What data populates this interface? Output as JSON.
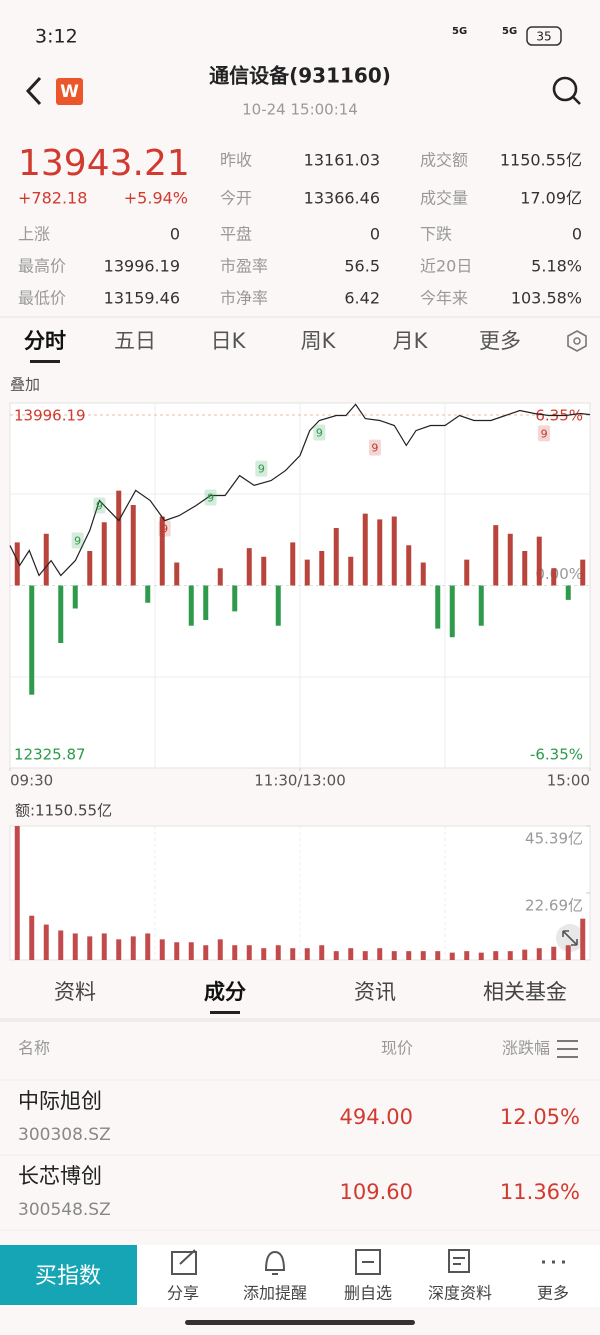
{
  "status_bar": {
    "time": "3:12",
    "signal": [
      "5G",
      "5G"
    ],
    "battery": "35"
  },
  "header": {
    "logo": "W",
    "title": "通信设备(931160)",
    "timestamp": "10-24 15:00:14"
  },
  "quote": {
    "price": "13943.21",
    "change": "+782.18",
    "change_pct": "+5.94%"
  },
  "stats": [
    [
      {
        "label": "昨收",
        "value": "13161.03"
      },
      {
        "label": "成交额",
        "value": "1150.55亿"
      }
    ],
    [
      {
        "label": "今开",
        "value": "13366.46"
      },
      {
        "label": "成交量",
        "value": "17.09亿"
      }
    ],
    [
      {
        "label": "上涨",
        "value": "0"
      },
      {
        "label": "平盘",
        "value": "0"
      },
      {
        "label": "下跌",
        "value": "0"
      }
    ],
    [
      {
        "label": "最高价",
        "value": "13996.19"
      },
      {
        "label": "市盈率",
        "value": "56.5"
      },
      {
        "label": "近20日",
        "value": "5.18%"
      }
    ],
    [
      {
        "label": "最低价",
        "value": "13159.46"
      },
      {
        "label": "市净率",
        "value": "6.42"
      },
      {
        "label": "今年来",
        "value": "103.58%"
      }
    ]
  ],
  "chart_tabs": [
    "分时",
    "五日",
    "日K",
    "周K",
    "月K",
    "更多"
  ],
  "active_chart_tab": 0,
  "overlay_label": "叠加",
  "chart_data": [
    {
      "type": "line",
      "x": [
        0,
        4,
        8,
        12,
        17,
        21,
        27,
        33,
        37,
        41,
        45,
        52,
        58,
        64,
        70,
        77,
        83,
        89,
        95,
        101,
        108,
        114,
        120,
        124,
        128,
        135,
        139,
        143,
        147,
        153,
        159,
        164,
        168,
        174,
        180,
        186,
        192,
        199,
        205,
        211,
        217,
        223,
        230,
        236,
        240
      ],
      "values": [
        13344,
        13253,
        13321,
        13207,
        13275,
        13207,
        13275,
        13413,
        13550,
        13504,
        13458,
        13596,
        13550,
        13458,
        13481,
        13527,
        13573,
        13573,
        13664,
        13619,
        13641,
        13687,
        13756,
        13870,
        13916,
        13939,
        13939,
        13990,
        13925,
        13916,
        13893,
        13802,
        13870,
        13893,
        13893,
        13939,
        13916,
        13916,
        13939,
        13962,
        13948,
        13939,
        13939,
        13948,
        13943.21
      ],
      "color": "#222222",
      "bars": [
        1.5,
        -3.8,
        1.8,
        -2.0,
        -0.8,
        1.2,
        2.2,
        3.3,
        2.8,
        -0.6,
        2.4,
        0.8,
        -1.4,
        -1.2,
        0.6,
        -0.9,
        1.3,
        1.0,
        -1.4,
        1.5,
        0.9,
        1.2,
        2.0,
        1.0,
        2.5,
        2.3,
        2.4,
        1.4,
        0.8,
        -1.5,
        -1.8,
        0.9,
        -1.4,
        2.1,
        1.8,
        1.2,
        1.7,
        0.6,
        -0.5,
        0.9
      ],
      "bars_axis": "y2",
      "up_color": "#b8443c",
      "down_color": "#2f9a4c",
      "xlim": [
        0,
        240
      ],
      "xticks": [
        {
          "value": 0,
          "label": "09:30"
        },
        {
          "value": 120,
          "label": "11:30/13:00"
        },
        {
          "value": 240,
          "label": "15:00"
        }
      ],
      "ylim": [
        12325.87,
        13996.19
      ],
      "yticks": [
        {
          "value": 13996.19,
          "label": "13996.19"
        },
        {
          "value": 12325.87,
          "label": "12325.87"
        }
      ],
      "y2lim": [
        -6.35,
        6.35
      ],
      "y2ticks": [
        {
          "value": 6.35,
          "label": "6.35%"
        },
        {
          "value": 0,
          "label": "0.00%"
        },
        {
          "value": -6.35,
          "label": "-6.35%"
        }
      ],
      "annotations": [
        {
          "label": "9",
          "x": 28,
          "y": 13367,
          "color": "#2f9a4c"
        },
        {
          "label": "9",
          "x": 37,
          "y": 13527,
          "color": "#2f9a4c"
        },
        {
          "label": "9",
          "x": 64,
          "y": 13422,
          "color": "#c0392b"
        },
        {
          "label": "9",
          "x": 83,
          "y": 13564,
          "color": "#2f9a4c"
        },
        {
          "label": "9",
          "x": 104,
          "y": 13696,
          "color": "#2f9a4c"
        },
        {
          "label": "9",
          "x": 128,
          "y": 13861,
          "color": "#2f9a4c"
        },
        {
          "label": "9",
          "x": 151,
          "y": 13792,
          "color": "#c0392b"
        },
        {
          "label": "9",
          "x": 221,
          "y": 13857,
          "color": "#c0392b"
        }
      ]
    },
    {
      "type": "bar",
      "title": "额:1150.55亿",
      "values": [
        45.39,
        15,
        12,
        10,
        9,
        8,
        9,
        7,
        8,
        9,
        7,
        6,
        6,
        5,
        7,
        5,
        5,
        4,
        5,
        4,
        4,
        5,
        3,
        4,
        3,
        4,
        3,
        3,
        3,
        3,
        2.5,
        3,
        2.5,
        3,
        3,
        3.5,
        4,
        4.5,
        5,
        14
      ],
      "color": "#c24a4a",
      "ylim": [
        0,
        45.39
      ],
      "yticks": [
        {
          "value": 45.39,
          "label": "45.39亿"
        },
        {
          "value": 22.69,
          "label": "22.69亿"
        }
      ]
    }
  ],
  "sub_tabs": [
    "资料",
    "成分",
    "资讯",
    "相关基金"
  ],
  "active_sub_tab": 1,
  "table": {
    "columns": [
      "名称",
      "现价",
      "涨跌幅"
    ],
    "rows": [
      {
        "name": "中际旭创",
        "code": "300308.SZ",
        "price": "494.00",
        "change": "12.05%"
      },
      {
        "name": "长芯博创",
        "code": "300548.SZ",
        "price": "109.60",
        "change": "11.36%"
      }
    ]
  },
  "bottom_bar": {
    "primary": "买指数",
    "actions": [
      "分享",
      "添加提醒",
      "删自选",
      "深度资料",
      "更多"
    ]
  }
}
